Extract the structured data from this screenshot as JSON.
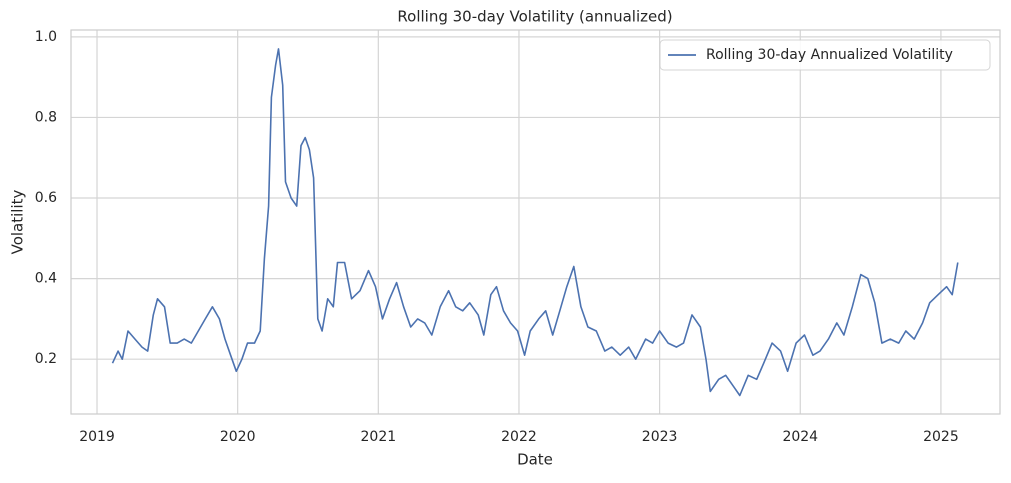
{
  "chart_data": {
    "type": "line",
    "title": "Rolling 30-day Volatility (annualized)",
    "x_label": "Date",
    "y_label": "Volatility",
    "x": [
      2019.11,
      2019.15,
      2019.18,
      2019.22,
      2019.27,
      2019.32,
      2019.36,
      2019.4,
      2019.43,
      2019.48,
      2019.52,
      2019.57,
      2019.62,
      2019.67,
      2019.72,
      2019.77,
      2019.82,
      2019.87,
      2019.91,
      2019.95,
      2019.99,
      2020.03,
      2020.07,
      2020.12,
      2020.16,
      2020.19,
      2020.22,
      2020.24,
      2020.27,
      2020.29,
      2020.32,
      2020.34,
      2020.38,
      2020.42,
      2020.45,
      2020.48,
      2020.51,
      2020.54,
      2020.57,
      2020.6,
      2020.64,
      2020.68,
      2020.71,
      2020.76,
      2020.81,
      2020.87,
      2020.93,
      2020.98,
      2021.03,
      2021.08,
      2021.13,
      2021.18,
      2021.23,
      2021.28,
      2021.33,
      2021.38,
      2021.44,
      2021.5,
      2021.55,
      2021.6,
      2021.65,
      2021.71,
      2021.75,
      2021.8,
      2021.84,
      2021.89,
      2021.94,
      2021.99,
      2022.04,
      2022.08,
      2022.14,
      2022.19,
      2022.24,
      2022.29,
      2022.34,
      2022.39,
      2022.44,
      2022.49,
      2022.55,
      2022.61,
      2022.66,
      2022.72,
      2022.78,
      2022.83,
      2022.9,
      2022.95,
      2023.0,
      2023.06,
      2023.12,
      2023.17,
      2023.23,
      2023.29,
      2023.33,
      2023.36,
      2023.42,
      2023.47,
      2023.53,
      2023.57,
      2023.63,
      2023.69,
      2023.74,
      2023.8,
      2023.86,
      2023.91,
      2023.97,
      2024.03,
      2024.09,
      2024.14,
      2024.2,
      2024.26,
      2024.31,
      2024.37,
      2024.43,
      2024.48,
      2024.53,
      2024.58,
      2024.64,
      2024.7,
      2024.75,
      2024.81,
      2024.87,
      2024.92,
      2024.98,
      2025.04,
      2025.08,
      2025.12
    ],
    "series": [
      {
        "name": "Rolling 30-day Annualized Volatility",
        "color": "#4c72b0",
        "values": [
          0.19,
          0.22,
          0.2,
          0.27,
          0.25,
          0.23,
          0.22,
          0.31,
          0.35,
          0.33,
          0.24,
          0.24,
          0.25,
          0.24,
          0.27,
          0.3,
          0.33,
          0.3,
          0.25,
          0.21,
          0.17,
          0.2,
          0.24,
          0.24,
          0.27,
          0.45,
          0.58,
          0.85,
          0.93,
          0.97,
          0.88,
          0.64,
          0.6,
          0.58,
          0.73,
          0.75,
          0.72,
          0.65,
          0.3,
          0.27,
          0.35,
          0.33,
          0.44,
          0.44,
          0.35,
          0.37,
          0.42,
          0.38,
          0.3,
          0.35,
          0.39,
          0.33,
          0.28,
          0.3,
          0.29,
          0.26,
          0.33,
          0.37,
          0.33,
          0.32,
          0.34,
          0.31,
          0.26,
          0.36,
          0.38,
          0.32,
          0.29,
          0.27,
          0.21,
          0.27,
          0.3,
          0.32,
          0.26,
          0.32,
          0.38,
          0.43,
          0.33,
          0.28,
          0.27,
          0.22,
          0.23,
          0.21,
          0.23,
          0.2,
          0.25,
          0.24,
          0.27,
          0.24,
          0.23,
          0.24,
          0.31,
          0.28,
          0.2,
          0.12,
          0.15,
          0.16,
          0.13,
          0.11,
          0.16,
          0.15,
          0.19,
          0.24,
          0.22,
          0.17,
          0.24,
          0.26,
          0.21,
          0.22,
          0.25,
          0.29,
          0.26,
          0.33,
          0.41,
          0.4,
          0.34,
          0.24,
          0.25,
          0.24,
          0.27,
          0.25,
          0.29,
          0.34,
          0.36,
          0.38,
          0.36,
          0.44
        ]
      }
    ],
    "xlim": [
      2018.815,
      2025.42
    ],
    "xticks": [
      2019,
      2020,
      2021,
      2022,
      2023,
      2024,
      2025
    ],
    "ylim": [
      0.064,
      1.017
    ],
    "yticks": [
      0.2,
      0.4,
      0.6,
      0.8,
      {
        "value": 1,
        "label": "1.0"
      }
    ],
    "grid": true,
    "legend": "upper right"
  }
}
